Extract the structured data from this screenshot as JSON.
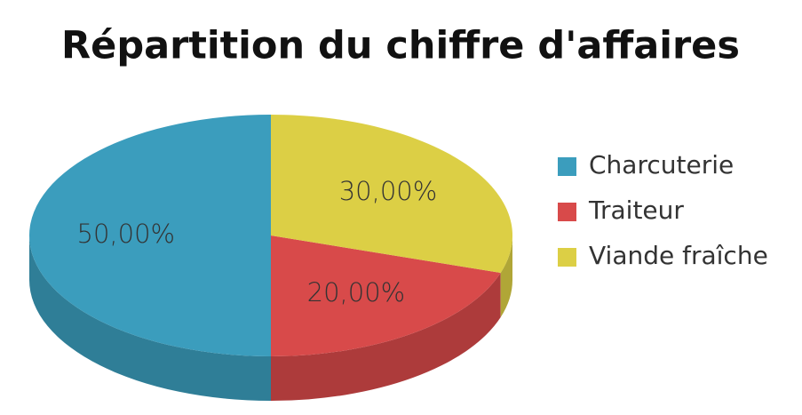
{
  "chart_data": {
    "type": "pie",
    "title": "Répartition du chiffre d'affaires",
    "categories": [
      "Charcuterie",
      "Traiteur",
      "Viande fraîche"
    ],
    "values": [
      50,
      20,
      30
    ],
    "value_labels": [
      "50,00%",
      "20,00%",
      "30,00%"
    ],
    "colors": [
      "#3b9dbd",
      "#d84a4a",
      "#dccf45"
    ],
    "legend": "right"
  }
}
